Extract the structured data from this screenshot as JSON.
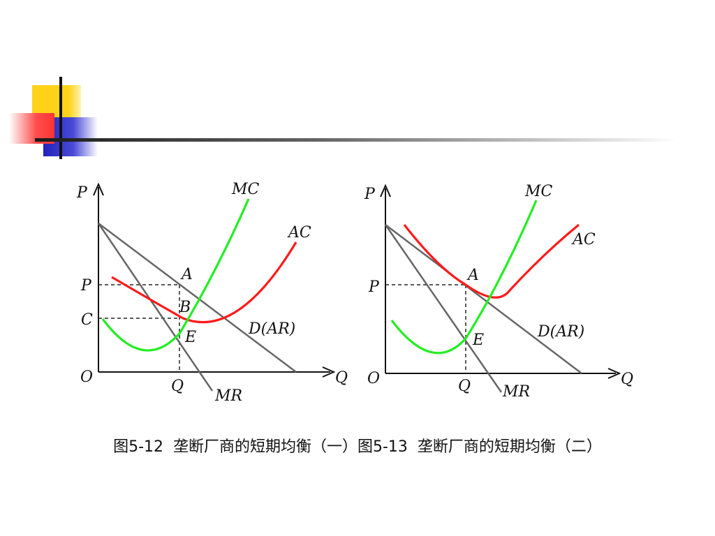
{
  "caption": "图5-12  垄断厂商的短期均衡（一）图5-13  垄断厂商的短期均衡（二）",
  "colors": {
    "mc_curve": "#22ee22",
    "ac_curve": "#ff1a1a",
    "demand_line": "#666666",
    "axis": "#111111",
    "guide": "#222222",
    "deco_yellow": "#ffd21a",
    "deco_blue": "#3333cc",
    "deco_red": "#ff6666"
  },
  "diagram_left": {
    "labels": {
      "y_axis": "P",
      "x_axis": "Q",
      "origin": "O",
      "mc": "MC",
      "ac": "AC",
      "demand": "D(AR)",
      "mr": "MR",
      "point_a": "A",
      "point_b": "B",
      "point_e": "E",
      "price_tick": "P",
      "cost_tick": "C",
      "quantity_tick": "Q"
    }
  },
  "diagram_right": {
    "labels": {
      "y_axis": "P",
      "x_axis": "Q",
      "origin": "O",
      "mc": "MC",
      "ac": "AC",
      "demand": "D(AR)",
      "mr": "MR",
      "point_a": "A",
      "point_e": "E",
      "price_tick": "P",
      "quantity_tick": "Q"
    }
  }
}
